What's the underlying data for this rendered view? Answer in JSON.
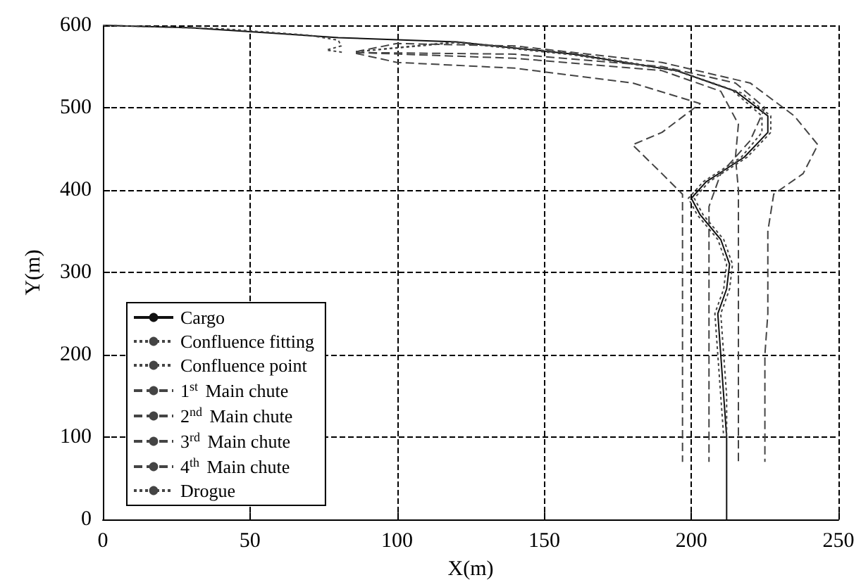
{
  "chart_data": {
    "type": "line",
    "xlabel": "X(m)",
    "ylabel": "Y(m)",
    "xlim": [
      0,
      250
    ],
    "xticks": [
      0,
      50,
      100,
      150,
      200,
      250
    ],
    "ylim": [
      0,
      600
    ],
    "yticks": [
      0,
      100,
      200,
      300,
      400,
      500,
      600
    ],
    "grid": true,
    "legend": "bottom left",
    "marker": "none",
    "series": [
      {
        "name": "Cargo",
        "color": "#111111",
        "line_style": "solid",
        "x": [
          0,
          30,
          60,
          80,
          120,
          160,
          195,
          215,
          226,
          226,
          218,
          205,
          200,
          203,
          210,
          213,
          212,
          209,
          210,
          211,
          212,
          212,
          212
        ],
        "values": [
          600,
          597,
          590,
          585,
          580,
          565,
          545,
          520,
          490,
          470,
          440,
          410,
          390,
          370,
          340,
          310,
          280,
          250,
          200,
          150,
          100,
          50,
          0
        ]
      },
      {
        "name": "Confluence fitting",
        "color": "#444444",
        "line_style": "dotted",
        "x": [
          86,
          120,
          160,
          196,
          217,
          227,
          227,
          219,
          206,
          201,
          204,
          211,
          214,
          213,
          210,
          211,
          212,
          212
        ],
        "values": [
          568,
          579,
          564,
          544,
          518,
          490,
          470,
          440,
          410,
          390,
          370,
          340,
          310,
          280,
          250,
          200,
          150,
          100
        ]
      },
      {
        "name": "Confluence point",
        "color": "#444444",
        "line_style": "dotted",
        "x": [
          86,
          120,
          160,
          194,
          214,
          224,
          224,
          217,
          204,
          199,
          202,
          209,
          212,
          211,
          208,
          209,
          210,
          211
        ],
        "values": [
          568,
          580,
          566,
          546,
          521,
          490,
          470,
          440,
          410,
          390,
          370,
          340,
          310,
          280,
          250,
          200,
          150,
          100
        ]
      },
      {
        "name": "1$^{st}$ Main chute",
        "color": "#444444",
        "line_style": "dashed",
        "x": [
          86,
          100,
          140,
          190,
          220,
          235,
          243,
          238,
          228,
          226,
          226,
          225,
          225
        ],
        "values": [
          568,
          578,
          575,
          555,
          530,
          490,
          455,
          420,
          395,
          350,
          250,
          200,
          70
        ]
      },
      {
        "name": "2$^{nd}$ Main chute",
        "color": "#444444",
        "line_style": "dashed",
        "x": [
          86,
          140,
          190,
          215,
          225,
          220,
          210,
          206,
          206,
          206,
          206
        ],
        "values": [
          567,
          565,
          550,
          530,
          500,
          460,
          420,
          380,
          300,
          200,
          70
        ]
      },
      {
        "name": "3$^{rd}$ Main chute",
        "color": "#444444",
        "line_style": "dashed",
        "x": [
          86,
          140,
          190,
          210,
          216,
          215,
          216,
          216,
          216,
          216
        ],
        "values": [
          567,
          560,
          545,
          520,
          480,
          440,
          400,
          300,
          200,
          70
        ]
      },
      {
        "name": "4$^{th}$ Main chute",
        "color": "#444444",
        "line_style": "dashed",
        "x": [
          86,
          100,
          140,
          180,
          203,
          190,
          180,
          190,
          197,
          197,
          197,
          197
        ],
        "values": [
          566,
          555,
          548,
          530,
          505,
          470,
          455,
          420,
          395,
          300,
          200,
          70
        ]
      },
      {
        "name": "Drogue",
        "color": "#444444",
        "line_style": "dotted",
        "x": [
          0,
          40,
          70,
          80,
          81,
          76,
          82
        ],
        "values": [
          600,
          596,
          588,
          582,
          575,
          570,
          567
        ]
      }
    ]
  }
}
